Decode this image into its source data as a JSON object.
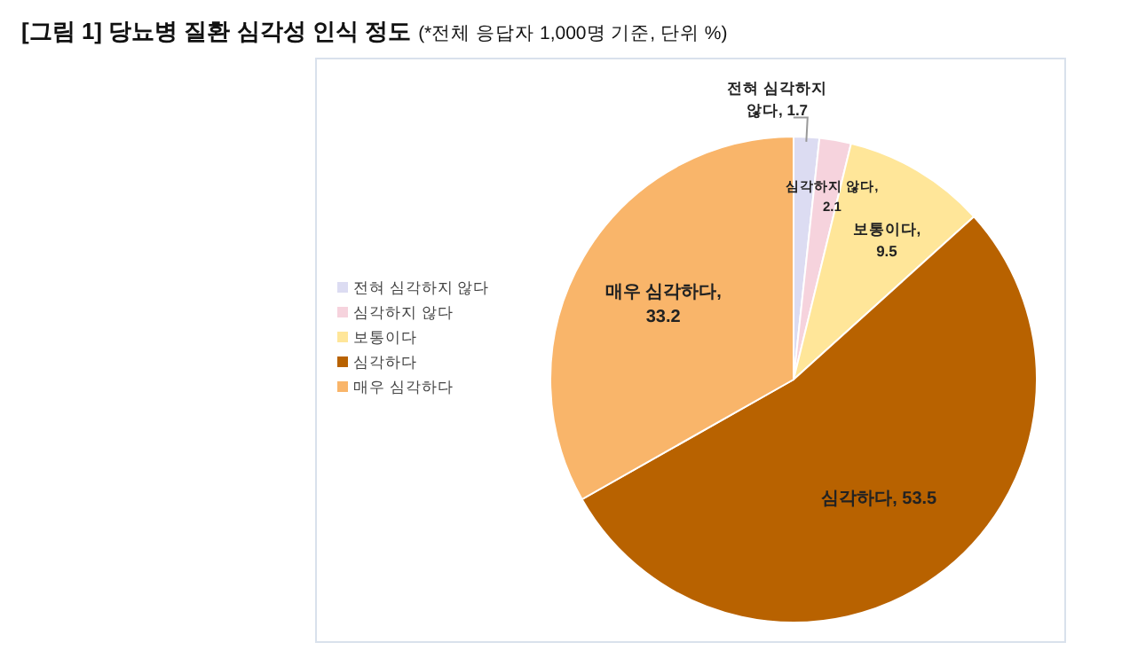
{
  "chart_data": {
    "type": "pie",
    "title": "[그림 1] 당뇨병 질환 심각성 인식 정도",
    "subtitle": "(*전체 응답자 1,000명 기준, 단위 %)",
    "categories": [
      "전혀 심각하지 않다",
      "심각하지 않다",
      "보통이다",
      "심각하다",
      "매우 심각하다"
    ],
    "values": [
      1.7,
      2.1,
      9.5,
      53.5,
      33.2
    ],
    "value_labels": [
      "전혀 심각하지 않다, 1.7",
      "심각하지 않다, 2.1",
      "보통이다, 9.5",
      "심각하다, 53.5",
      "매우 심각하다, 33.2"
    ],
    "colors": [
      "#dcdcf2",
      "#f6d3dd",
      "#ffe699",
      "#b86200",
      "#f9b56a"
    ],
    "legend": "left"
  }
}
